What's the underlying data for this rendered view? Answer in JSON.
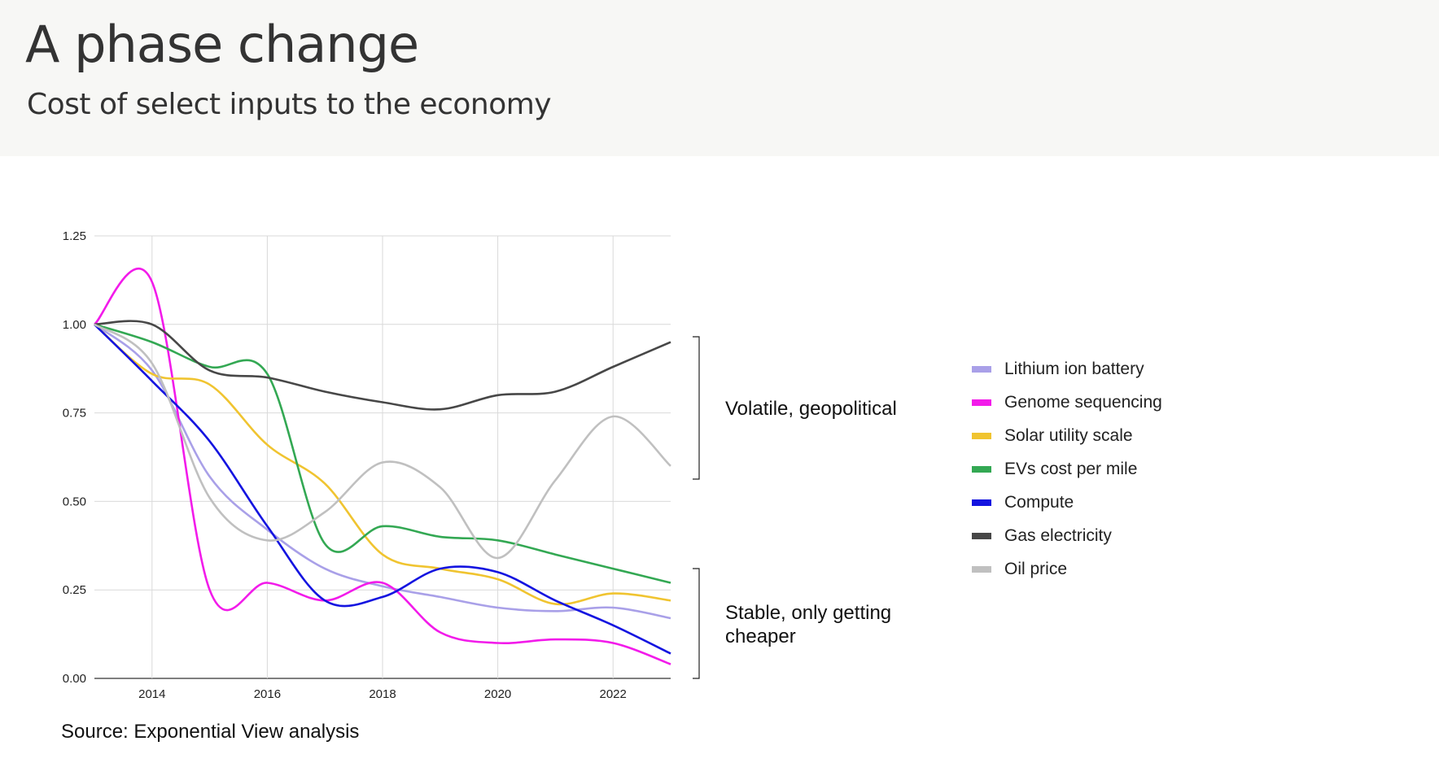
{
  "header": {
    "title": "A phase change",
    "subtitle": "Cost of select inputs to the economy"
  },
  "annotations": {
    "volatile": "Volatile, geopolitical",
    "stable": "Stable, only getting cheaper"
  },
  "source": "Source: Exponential View analysis",
  "chart_data": {
    "type": "line",
    "xlim": [
      2013,
      2023
    ],
    "ylim": [
      0,
      1.25
    ],
    "xticks": [
      2014,
      2016,
      2018,
      2020,
      2022
    ],
    "xtick_labels": [
      "2014",
      "2016",
      "2018",
      "2020",
      "2022"
    ],
    "yticks": [
      0,
      0.25,
      0.5,
      0.75,
      1.0,
      1.25
    ],
    "ytick_labels": [
      "0.00",
      "0.25",
      "0.50",
      "0.75",
      "1.00",
      "1.25"
    ],
    "grid": true,
    "legend_position": "right",
    "x": [
      2013,
      2014,
      2015,
      2016,
      2017,
      2018,
      2019,
      2020,
      2021,
      2022,
      2023
    ],
    "series": [
      {
        "name": "Lithium ion battery",
        "color": "#a9a0e8",
        "values": [
          1.0,
          0.87,
          0.57,
          0.42,
          0.31,
          0.26,
          0.23,
          0.2,
          0.19,
          0.2,
          0.17
        ]
      },
      {
        "name": "Genome sequencing",
        "color": "#f21bea",
        "values": [
          1.0,
          1.12,
          0.25,
          0.27,
          0.22,
          0.27,
          0.13,
          0.1,
          0.11,
          0.1,
          0.04
        ]
      },
      {
        "name": "Solar utility scale",
        "color": "#f0c430",
        "values": [
          1.0,
          0.86,
          0.83,
          0.66,
          0.55,
          0.35,
          0.31,
          0.28,
          0.21,
          0.24,
          0.22
        ]
      },
      {
        "name": "EVs cost per mile",
        "color": "#33a853",
        "values": [
          1.0,
          0.95,
          0.88,
          0.86,
          0.38,
          0.43,
          0.4,
          0.39,
          0.35,
          0.31,
          0.27
        ]
      },
      {
        "name": "Compute",
        "color": "#1414e0",
        "values": [
          1.0,
          0.84,
          0.67,
          0.43,
          0.22,
          0.23,
          0.31,
          0.3,
          0.22,
          0.15,
          0.07
        ]
      },
      {
        "name": "Gas electricity",
        "color": "#474747",
        "values": [
          1.0,
          1.0,
          0.87,
          0.85,
          0.81,
          0.78,
          0.76,
          0.8,
          0.81,
          0.88,
          0.95
        ]
      },
      {
        "name": "Oil price",
        "color": "#c0c0c0",
        "values": [
          1.0,
          0.89,
          0.51,
          0.39,
          0.47,
          0.61,
          0.54,
          0.34,
          0.56,
          0.74,
          0.6
        ]
      }
    ]
  }
}
